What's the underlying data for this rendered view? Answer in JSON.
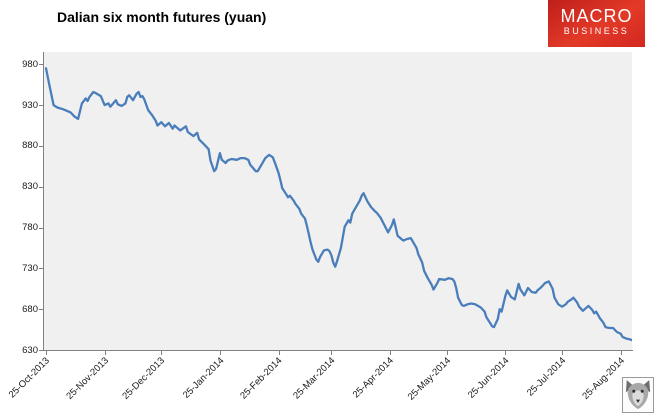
{
  "title": "Dalian six month futures (yuan)",
  "logo": {
    "line1": "MACRO",
    "line2": "BUSINESS",
    "bg_color": "#d32620",
    "text_color": "#ffffff"
  },
  "chart_data": {
    "type": "line",
    "title": "Dalian six month futures (yuan)",
    "xlabel": "",
    "ylabel": "",
    "grid": false,
    "legend": "none",
    "plot_bg_color": "#f0f0f0",
    "axis_color": "#808080",
    "ylim": [
      630,
      995
    ],
    "y_ticks": [
      980,
      930,
      880,
      830,
      780,
      730,
      680,
      630
    ],
    "x_tick_labels": [
      "25-Oct-2013",
      "25-Nov-2013",
      "25-Dec-2013",
      "25-Jan-2014",
      "25-Feb-2014",
      "25-Mar-2014",
      "25-Apr-2014",
      "25-May-2014",
      "25-Jun-2014",
      "25-Jul-2014",
      "25-Aug-2014"
    ],
    "x_tick_days": [
      0,
      31,
      61,
      92,
      123,
      151,
      182,
      212,
      243,
      273,
      304
    ],
    "x_range_days": [
      0,
      310
    ],
    "series": [
      {
        "name": "Dalian six month futures (yuan)",
        "color": "#4a7ebb",
        "points_format": "[days_since_25-Oct-2013, yuan]",
        "points": [
          [
            0,
            975
          ],
          [
            2,
            952
          ],
          [
            4,
            930
          ],
          [
            6,
            927
          ],
          [
            9,
            925
          ],
          [
            13,
            921
          ],
          [
            15,
            916
          ],
          [
            17,
            913
          ],
          [
            19,
            932
          ],
          [
            21,
            938
          ],
          [
            22,
            935
          ],
          [
            23,
            940
          ],
          [
            25,
            946
          ],
          [
            26,
            945
          ],
          [
            29,
            941
          ],
          [
            31,
            930
          ],
          [
            33,
            932
          ],
          [
            34,
            928
          ],
          [
            37,
            936
          ],
          [
            38,
            931
          ],
          [
            40,
            929
          ],
          [
            42,
            932
          ],
          [
            43,
            940
          ],
          [
            44,
            942
          ],
          [
            46,
            936
          ],
          [
            48,
            944
          ],
          [
            49,
            946
          ],
          [
            50,
            940
          ],
          [
            51,
            941
          ],
          [
            52,
            937
          ],
          [
            54,
            924
          ],
          [
            56,
            918
          ],
          [
            58,
            911
          ],
          [
            59,
            905
          ],
          [
            61,
            909
          ],
          [
            63,
            904
          ],
          [
            65,
            908
          ],
          [
            67,
            901
          ],
          [
            68,
            905
          ],
          [
            71,
            899
          ],
          [
            74,
            904
          ],
          [
            75,
            897
          ],
          [
            78,
            892
          ],
          [
            80,
            896
          ],
          [
            81,
            888
          ],
          [
            84,
            881
          ],
          [
            86,
            876
          ],
          [
            87,
            862
          ],
          [
            89,
            849
          ],
          [
            90,
            852
          ],
          [
            92,
            871
          ],
          [
            93,
            863
          ],
          [
            95,
            859
          ],
          [
            96,
            862
          ],
          [
            98,
            864
          ],
          [
            101,
            863
          ],
          [
            103,
            865
          ],
          [
            105,
            865
          ],
          [
            107,
            863
          ],
          [
            108,
            857
          ],
          [
            111,
            849
          ],
          [
            112,
            849
          ],
          [
            114,
            857
          ],
          [
            116,
            865
          ],
          [
            118,
            869
          ],
          [
            120,
            866
          ],
          [
            121,
            860
          ],
          [
            123,
            847
          ],
          [
            124,
            838
          ],
          [
            125,
            828
          ],
          [
            127,
            821
          ],
          [
            128,
            817
          ],
          [
            129,
            819
          ],
          [
            131,
            813
          ],
          [
            132,
            809
          ],
          [
            134,
            803
          ],
          [
            135,
            797
          ],
          [
            137,
            791
          ],
          [
            138,
            782
          ],
          [
            139,
            772
          ],
          [
            140,
            762
          ],
          [
            141,
            753
          ],
          [
            142,
            747
          ],
          [
            143,
            741
          ],
          [
            144,
            738
          ],
          [
            145,
            744
          ],
          [
            147,
            752
          ],
          [
            149,
            753
          ],
          [
            150,
            751
          ],
          [
            151,
            746
          ],
          [
            152,
            737
          ],
          [
            153,
            732
          ],
          [
            154,
            739
          ],
          [
            156,
            755
          ],
          [
            157,
            768
          ],
          [
            158,
            781
          ],
          [
            160,
            789
          ],
          [
            161,
            786
          ],
          [
            162,
            797
          ],
          [
            164,
            805
          ],
          [
            166,
            813
          ],
          [
            167,
            819
          ],
          [
            168,
            822
          ],
          [
            169,
            817
          ],
          [
            170,
            812
          ],
          [
            172,
            805
          ],
          [
            174,
            800
          ],
          [
            175,
            798
          ],
          [
            177,
            792
          ],
          [
            179,
            783
          ],
          [
            181,
            774
          ],
          [
            183,
            783
          ],
          [
            184,
            790
          ],
          [
            185,
            780
          ],
          [
            186,
            770
          ],
          [
            188,
            766
          ],
          [
            189,
            764
          ],
          [
            191,
            766
          ],
          [
            193,
            767
          ],
          [
            194,
            763
          ],
          [
            196,
            755
          ],
          [
            197,
            747
          ],
          [
            199,
            737
          ],
          [
            200,
            727
          ],
          [
            202,
            718
          ],
          [
            204,
            710
          ],
          [
            205,
            704
          ],
          [
            207,
            712
          ],
          [
            208,
            717
          ],
          [
            211,
            716
          ],
          [
            213,
            718
          ],
          [
            215,
            717
          ],
          [
            216,
            714
          ],
          [
            217,
            706
          ],
          [
            218,
            694
          ],
          [
            220,
            685
          ],
          [
            221,
            684
          ],
          [
            223,
            686
          ],
          [
            225,
            687
          ],
          [
            227,
            686
          ],
          [
            230,
            682
          ],
          [
            232,
            677
          ],
          [
            233,
            670
          ],
          [
            235,
            663
          ],
          [
            236,
            659
          ],
          [
            237,
            658
          ],
          [
            239,
            668
          ],
          [
            240,
            680
          ],
          [
            241,
            677
          ],
          [
            243,
            696
          ],
          [
            244,
            703
          ],
          [
            246,
            695
          ],
          [
            248,
            692
          ],
          [
            250,
            711
          ],
          [
            251,
            704
          ],
          [
            253,
            697
          ],
          [
            255,
            706
          ],
          [
            257,
            701
          ],
          [
            259,
            700
          ],
          [
            260,
            703
          ],
          [
            262,
            707
          ],
          [
            264,
            712
          ],
          [
            266,
            714
          ],
          [
            268,
            705
          ],
          [
            269,
            694
          ],
          [
            271,
            686
          ],
          [
            273,
            683
          ],
          [
            275,
            686
          ],
          [
            276,
            689
          ],
          [
            278,
            692
          ],
          [
            279,
            694
          ],
          [
            281,
            688
          ],
          [
            282,
            683
          ],
          [
            284,
            678
          ],
          [
            286,
            682
          ],
          [
            287,
            684
          ],
          [
            289,
            679
          ],
          [
            290,
            675
          ],
          [
            291,
            677
          ],
          [
            293,
            669
          ],
          [
            295,
            663
          ],
          [
            296,
            658
          ],
          [
            298,
            657
          ],
          [
            300,
            657
          ],
          [
            302,
            652
          ],
          [
            304,
            650
          ],
          [
            305,
            646
          ],
          [
            307,
            644
          ],
          [
            309,
            643
          ],
          [
            310,
            642
          ]
        ]
      }
    ]
  }
}
